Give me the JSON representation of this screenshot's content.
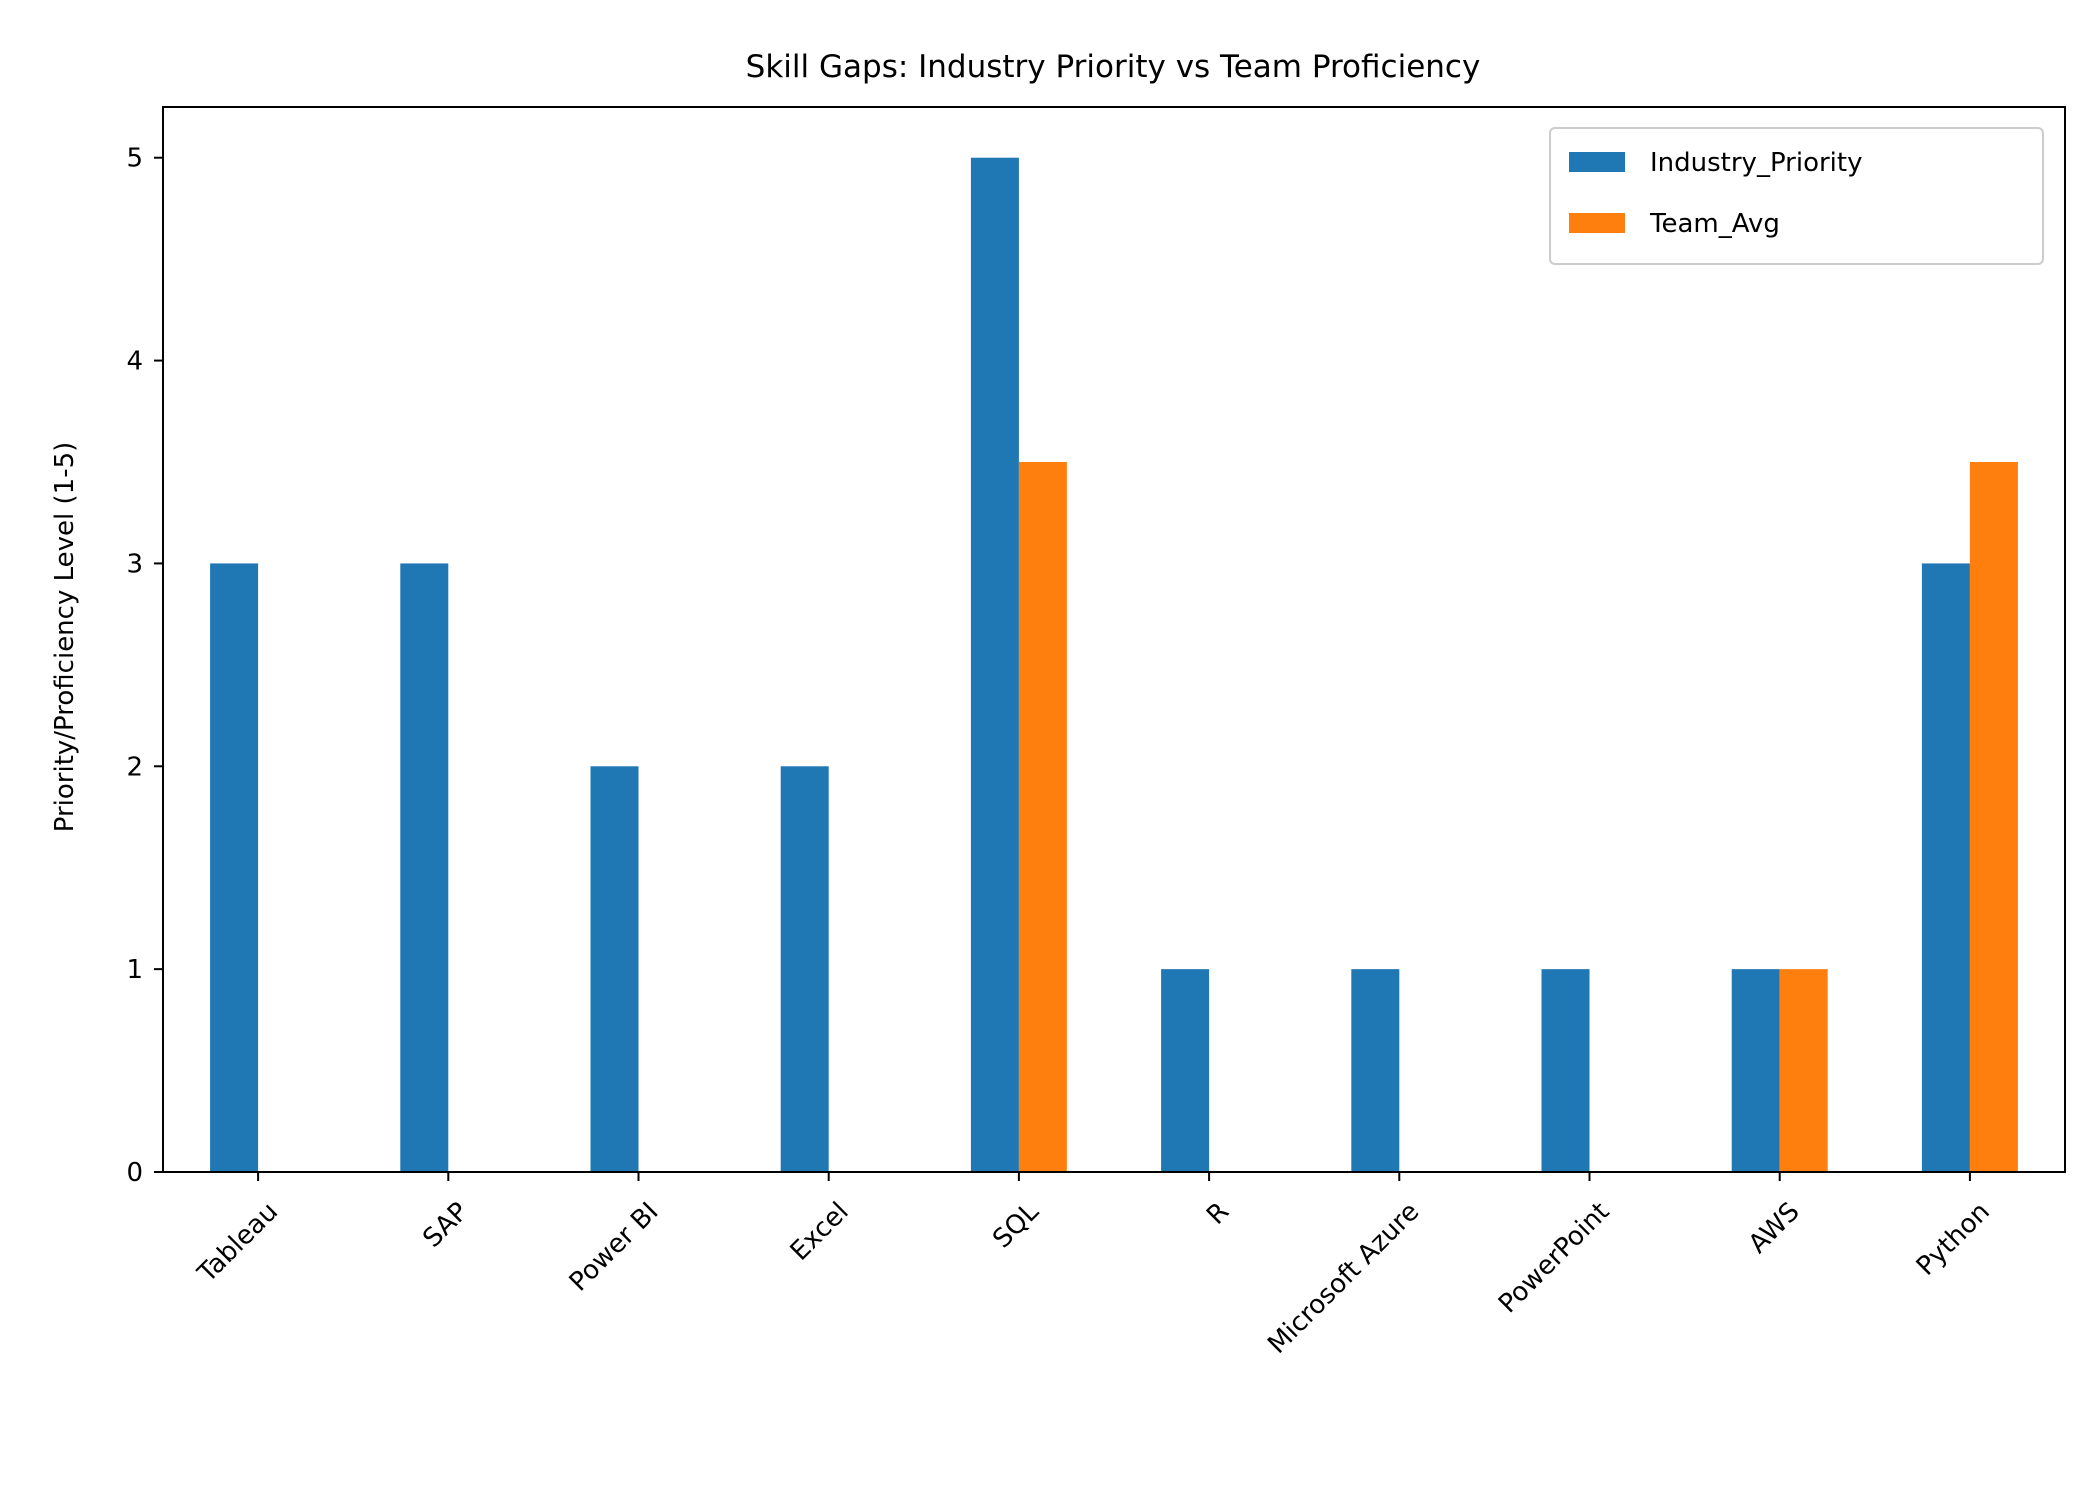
{
  "chart_data": {
    "type": "bar",
    "title": "Skill Gaps: Industry Priority vs Team Proficiency",
    "xlabel": "",
    "ylabel": "Priority/Proficiency Level (1-5)",
    "categories": [
      "Tableau",
      "SAP",
      "Power BI",
      "Excel",
      "SQL",
      "R",
      "Microsoft Azure",
      "PowerPoint",
      "AWS",
      "Python"
    ],
    "series": [
      {
        "name": "Industry_Priority",
        "color": "#1f77b4",
        "values": [
          3,
          3,
          2,
          2,
          5,
          1,
          1,
          1,
          1,
          3
        ]
      },
      {
        "name": "Team_Avg",
        "color": "#ff7f0e",
        "values": [
          0,
          0,
          0,
          0,
          3.5,
          0,
          0,
          0,
          1,
          3.5
        ]
      }
    ],
    "ylim": [
      0,
      5.25
    ],
    "yticks": [
      0,
      1,
      2,
      3,
      4,
      5
    ],
    "grid": false,
    "legend_position": "top-right",
    "xtick_rotation": 45
  }
}
